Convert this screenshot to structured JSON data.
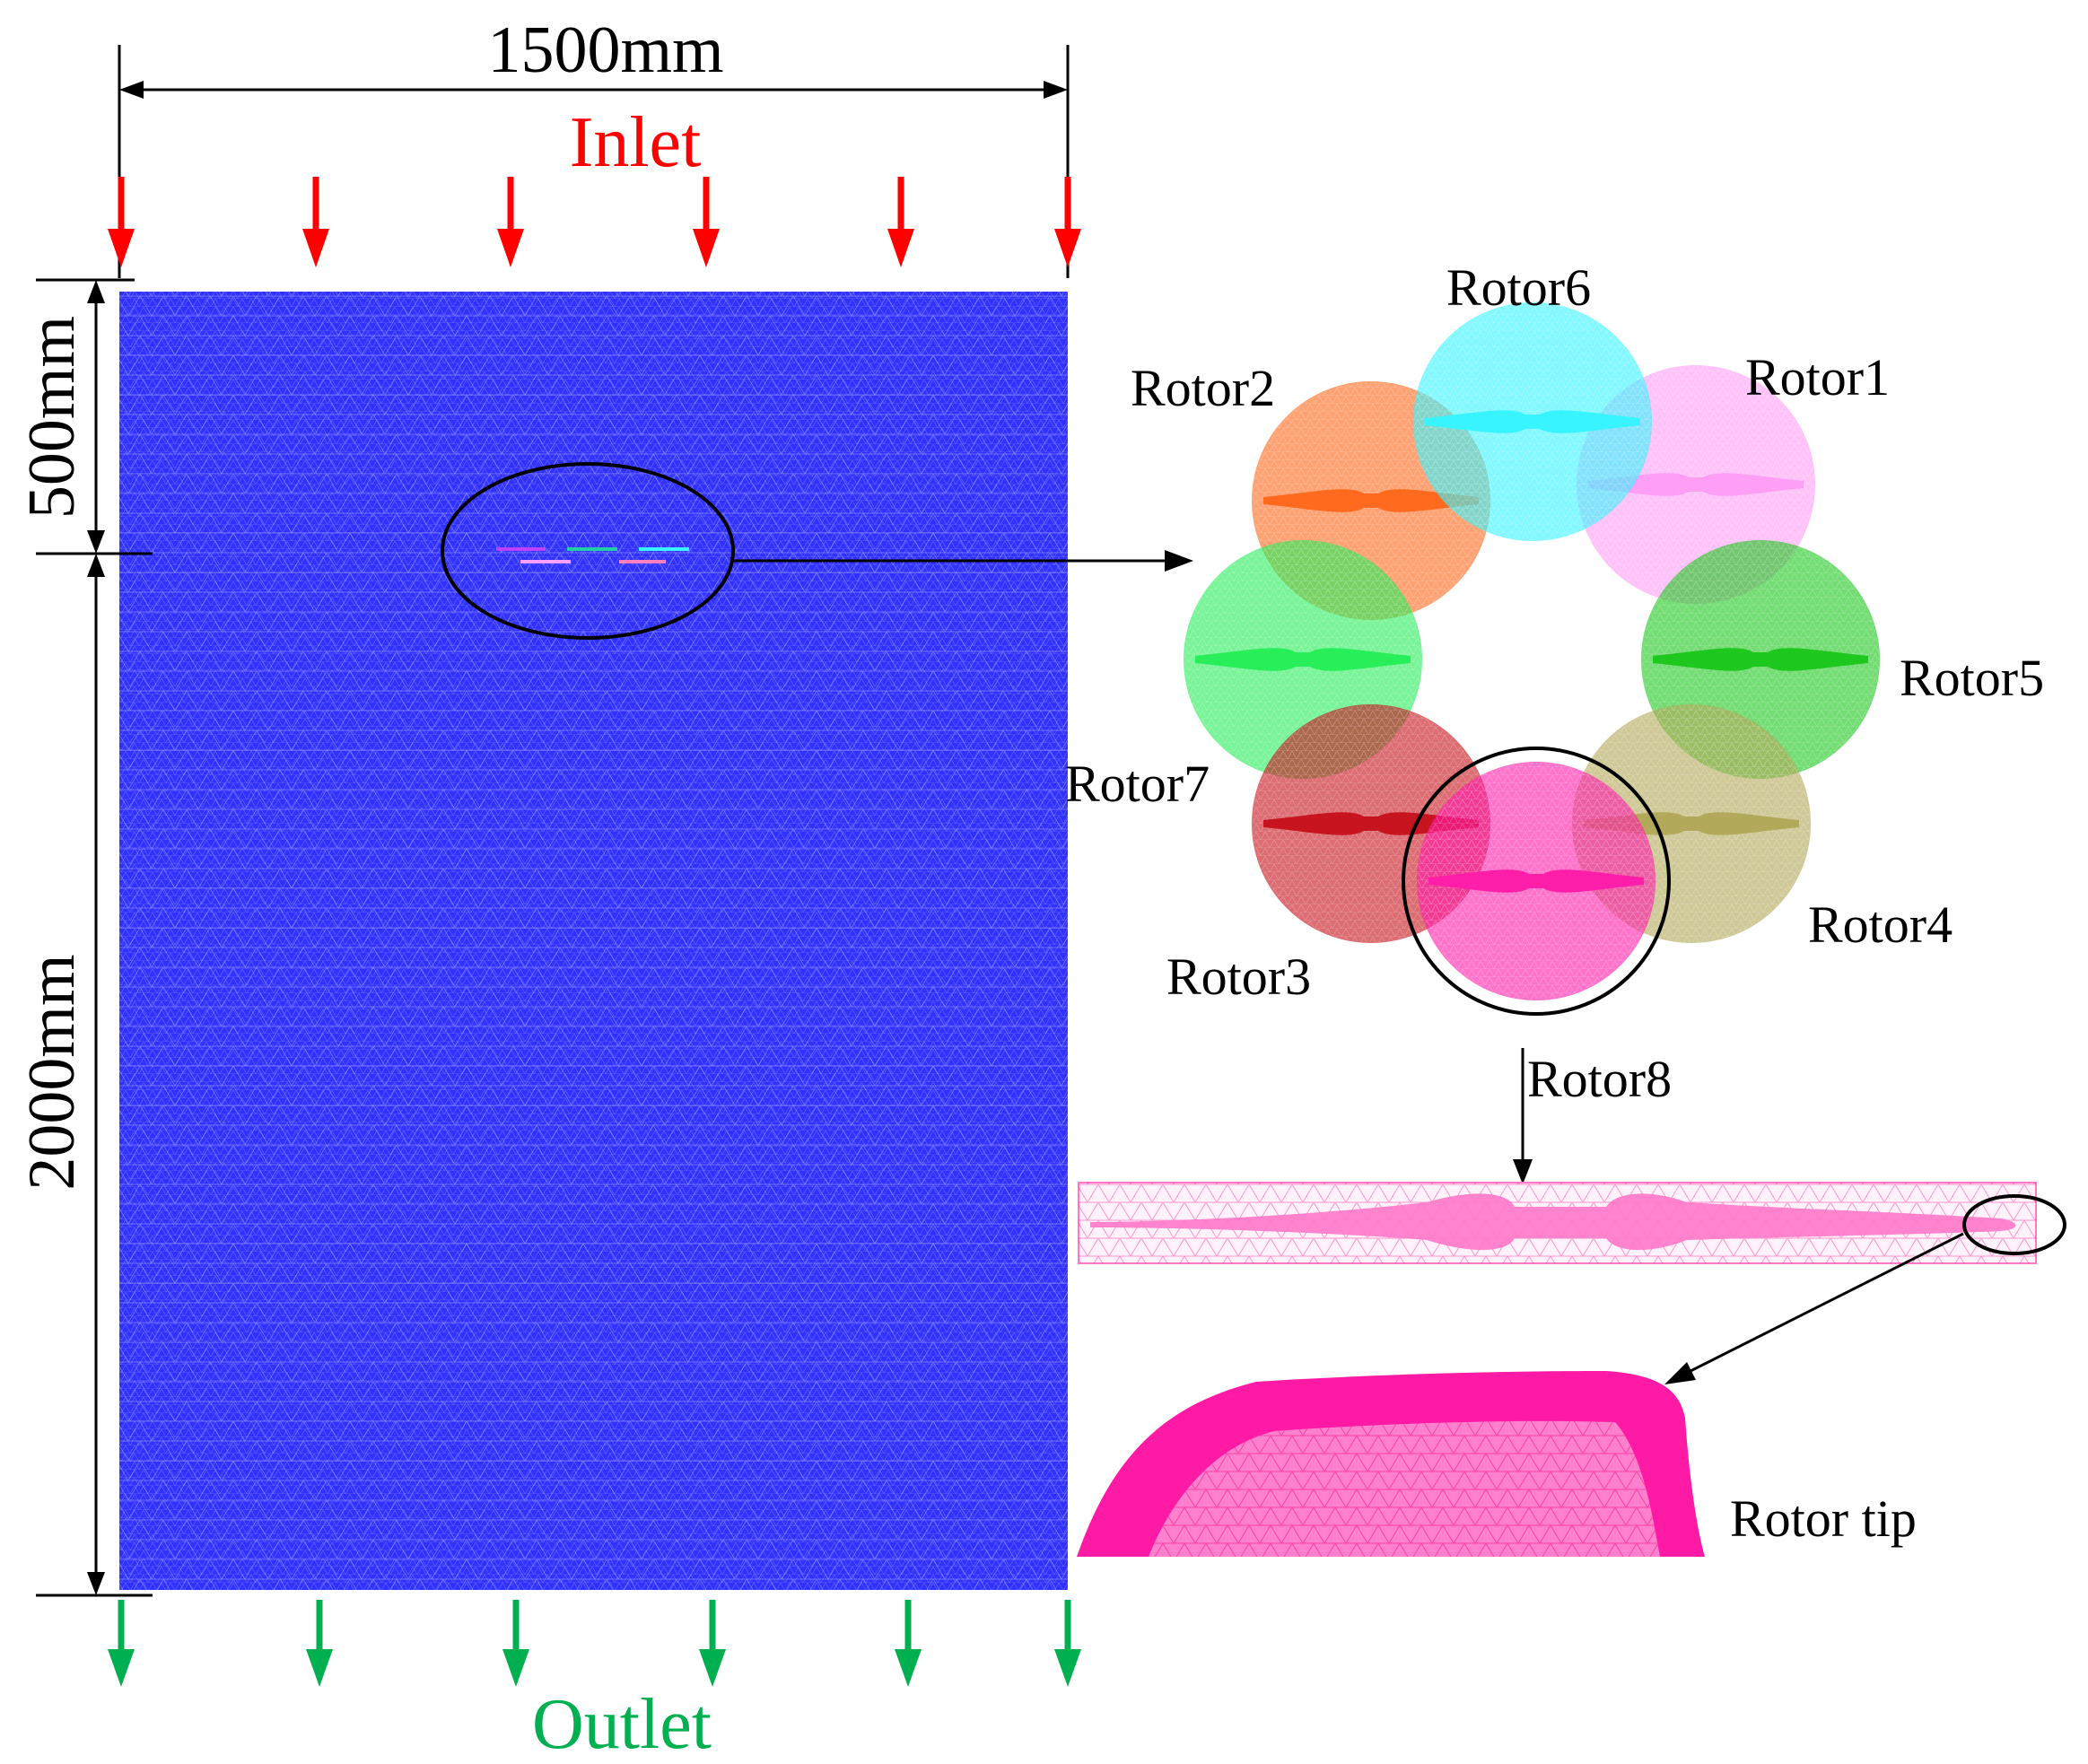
{
  "dimensions": {
    "width": "1500mm",
    "upper": "500mm",
    "lower": "2000mm"
  },
  "boundaries": {
    "inlet": "Inlet",
    "outlet": "Outlet"
  },
  "rotors": [
    {
      "label": "Rotor1",
      "color": "#ff9ef5"
    },
    {
      "label": "Rotor2",
      "color": "#ff6a1e"
    },
    {
      "label": "Rotor3",
      "color": "#c8141e"
    },
    {
      "label": "Rotor4",
      "color": "#b3a95a"
    },
    {
      "label": "Rotor5",
      "color": "#1ec81e"
    },
    {
      "label": "Rotor6",
      "color": "#38f4ff"
    },
    {
      "label": "Rotor7",
      "color": "#28ee5a"
    },
    {
      "label": "Rotor8",
      "color": "#ff1eaa"
    }
  ],
  "detail": {
    "tip_label": "Rotor tip"
  },
  "colors": {
    "domain": "#3131ff",
    "inlet_arrow": "#ff0000",
    "outlet_arrow": "#00b050",
    "blade": "#ff1493"
  }
}
